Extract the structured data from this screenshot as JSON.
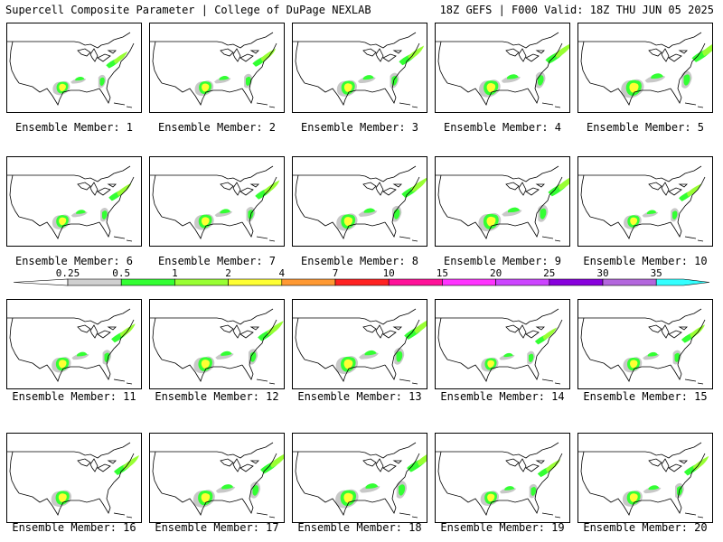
{
  "header": {
    "left": "Supercell Composite Parameter | College of DuPage NEXLAB",
    "right": "18Z GEFS | F000 Valid: 18Z THU JUN 05 2025"
  },
  "panels": [
    {
      "caption": "Ensemble Member: 1"
    },
    {
      "caption": "Ensemble Member: 2"
    },
    {
      "caption": "Ensemble Member: 3"
    },
    {
      "caption": "Ensemble Member: 4"
    },
    {
      "caption": "Ensemble Member: 5"
    },
    {
      "caption": "Ensemble Member: 6"
    },
    {
      "caption": "Ensemble Member: 7"
    },
    {
      "caption": "Ensemble Member: 8"
    },
    {
      "caption": "Ensemble Member: 9"
    },
    {
      "caption": "Ensemble Member: 10"
    },
    {
      "caption": "Ensemble Member: 11"
    },
    {
      "caption": "Ensemble Member: 12"
    },
    {
      "caption": "Ensemble Member: 13"
    },
    {
      "caption": "Ensemble Member: 14"
    },
    {
      "caption": "Ensemble Member: 15"
    },
    {
      "caption": "Ensemble Member: 16"
    },
    {
      "caption": "Ensemble Member: 17"
    },
    {
      "caption": "Ensemble Member: 18"
    },
    {
      "caption": "Ensemble Member: 19"
    },
    {
      "caption": "Ensemble Member: 20"
    }
  ],
  "colorbar": {
    "labels": [
      "0.25",
      "0.5",
      "1",
      "2",
      "4",
      "7",
      "10",
      "15",
      "20",
      "25",
      "30",
      "35"
    ],
    "colors": [
      "#d0d0d0",
      "#33ff33",
      "#99ff33",
      "#ffff33",
      "#ff9933",
      "#ff2222",
      "#ff1199",
      "#ff33ff",
      "#cc44ff",
      "#8800dd",
      "#b366dd",
      "#33ffff"
    ]
  },
  "colors": {
    "coast": "#000000",
    "gray_contour": "#c8c8c8",
    "green": "#33ff33",
    "light_green": "#99ff33",
    "yellow": "#ffff33"
  }
}
